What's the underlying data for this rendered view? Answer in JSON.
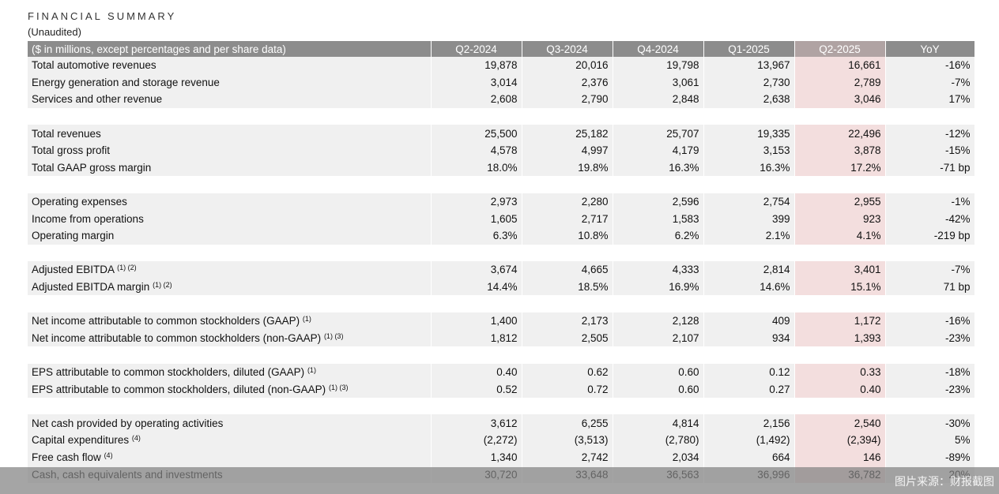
{
  "title": "FINANCIAL SUMMARY",
  "subtitle": "(Unaudited)",
  "header": [
    "($ in millions, except percentages and per share data)",
    "Q2-2024",
    "Q3-2024",
    "Q4-2024",
    "Q1-2025",
    "Q2-2025",
    "YoY"
  ],
  "highlight_color": "#f3dede",
  "groups": [
    [
      {
        "label": "Total automotive revenues",
        "note": "",
        "values": [
          "19,878",
          "20,016",
          "19,798",
          "13,967",
          "16,661",
          "-16%"
        ]
      },
      {
        "label": "Energy generation and storage revenue",
        "note": "",
        "values": [
          "3,014",
          "2,376",
          "3,061",
          "2,730",
          "2,789",
          "-7%"
        ]
      },
      {
        "label": "Services and other revenue",
        "note": "",
        "values": [
          "2,608",
          "2,790",
          "2,848",
          "2,638",
          "3,046",
          "17%"
        ]
      }
    ],
    [
      {
        "label": "Total revenues",
        "note": "",
        "values": [
          "25,500",
          "25,182",
          "25,707",
          "19,335",
          "22,496",
          "-12%"
        ]
      },
      {
        "label": "Total gross profit",
        "note": "",
        "values": [
          "4,578",
          "4,997",
          "4,179",
          "3,153",
          "3,878",
          "-15%"
        ]
      },
      {
        "label": "Total GAAP gross margin",
        "note": "",
        "values": [
          "18.0%",
          "19.8%",
          "16.3%",
          "16.3%",
          "17.2%",
          "-71 bp"
        ]
      }
    ],
    [
      {
        "label": "Operating expenses",
        "note": "",
        "values": [
          "2,973",
          "2,280",
          "2,596",
          "2,754",
          "2,955",
          "-1%"
        ]
      },
      {
        "label": "Income from operations",
        "note": "",
        "values": [
          "1,605",
          "2,717",
          "1,583",
          "399",
          "923",
          "-42%"
        ]
      },
      {
        "label": "Operating margin",
        "note": "",
        "values": [
          "6.3%",
          "10.8%",
          "6.2%",
          "2.1%",
          "4.1%",
          "-219 bp"
        ]
      }
    ],
    [
      {
        "label": "Adjusted EBITDA",
        "note": "(1) (2)",
        "values": [
          "3,674",
          "4,665",
          "4,333",
          "2,814",
          "3,401",
          "-7%"
        ]
      },
      {
        "label": "Adjusted EBITDA margin",
        "note": "(1) (2)",
        "values": [
          "14.4%",
          "18.5%",
          "16.9%",
          "14.6%",
          "15.1%",
          "71 bp"
        ]
      }
    ],
    [
      {
        "label": "Net income attributable to common stockholders (GAAP)",
        "note": "(1)",
        "values": [
          "1,400",
          "2,173",
          "2,128",
          "409",
          "1,172",
          "-16%"
        ]
      },
      {
        "label": "Net income attributable to common stockholders (non-GAAP)",
        "note": "(1) (3)",
        "values": [
          "1,812",
          "2,505",
          "2,107",
          "934",
          "1,393",
          "-23%"
        ]
      }
    ],
    [
      {
        "label": "EPS attributable to common stockholders, diluted (GAAP)",
        "note": "(1)",
        "values": [
          "0.40",
          "0.62",
          "0.60",
          "0.12",
          "0.33",
          "-18%"
        ]
      },
      {
        "label": "EPS attributable to common stockholders, diluted (non-GAAP)",
        "note": "(1) (3)",
        "values": [
          "0.52",
          "0.72",
          "0.60",
          "0.27",
          "0.40",
          "-23%"
        ]
      }
    ],
    [
      {
        "label": "Net cash provided by operating activities",
        "note": "",
        "values": [
          "3,612",
          "6,255",
          "4,814",
          "2,156",
          "2,540",
          "-30%"
        ]
      },
      {
        "label": "Capital expenditures",
        "note": "(4)",
        "values": [
          "(2,272)",
          "(3,513)",
          "(2,780)",
          "(1,492)",
          "(2,394)",
          "5%"
        ]
      },
      {
        "label": "Free cash flow",
        "note": "(4)",
        "values": [
          "1,340",
          "2,742",
          "2,034",
          "664",
          "146",
          "-89%"
        ]
      },
      {
        "label": "Cash, cash equivalents and investments",
        "note": "",
        "values": [
          "30,720",
          "33,648",
          "36,563",
          "36,996",
          "36,782",
          "20%"
        ]
      }
    ]
  ],
  "watermark": "图片来源：财报截图"
}
